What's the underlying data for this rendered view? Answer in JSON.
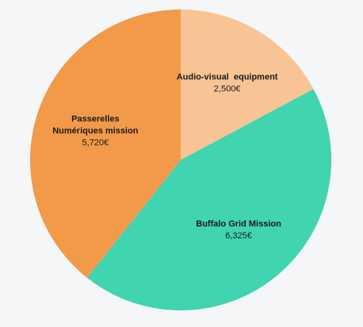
{
  "chart_data": {
    "type": "pie",
    "title": "",
    "slices": [
      {
        "label_lines": [
          "Audio-visual  equipment"
        ],
        "value": 2500,
        "value_label": "2,500€",
        "color": "#f8c495"
      },
      {
        "label_lines": [
          "Buffalo Grid Mission"
        ],
        "value": 6325,
        "value_label": "6,325€",
        "color": "#40d4b0"
      },
      {
        "label_lines": [
          "Passerelles",
          "Numériques mission"
        ],
        "value": 5720,
        "value_label": "5,720€",
        "color": "#f29a4a"
      }
    ],
    "start_angle": "top",
    "direction": "clockwise",
    "legend": "none",
    "background": "#f4f6f7"
  }
}
